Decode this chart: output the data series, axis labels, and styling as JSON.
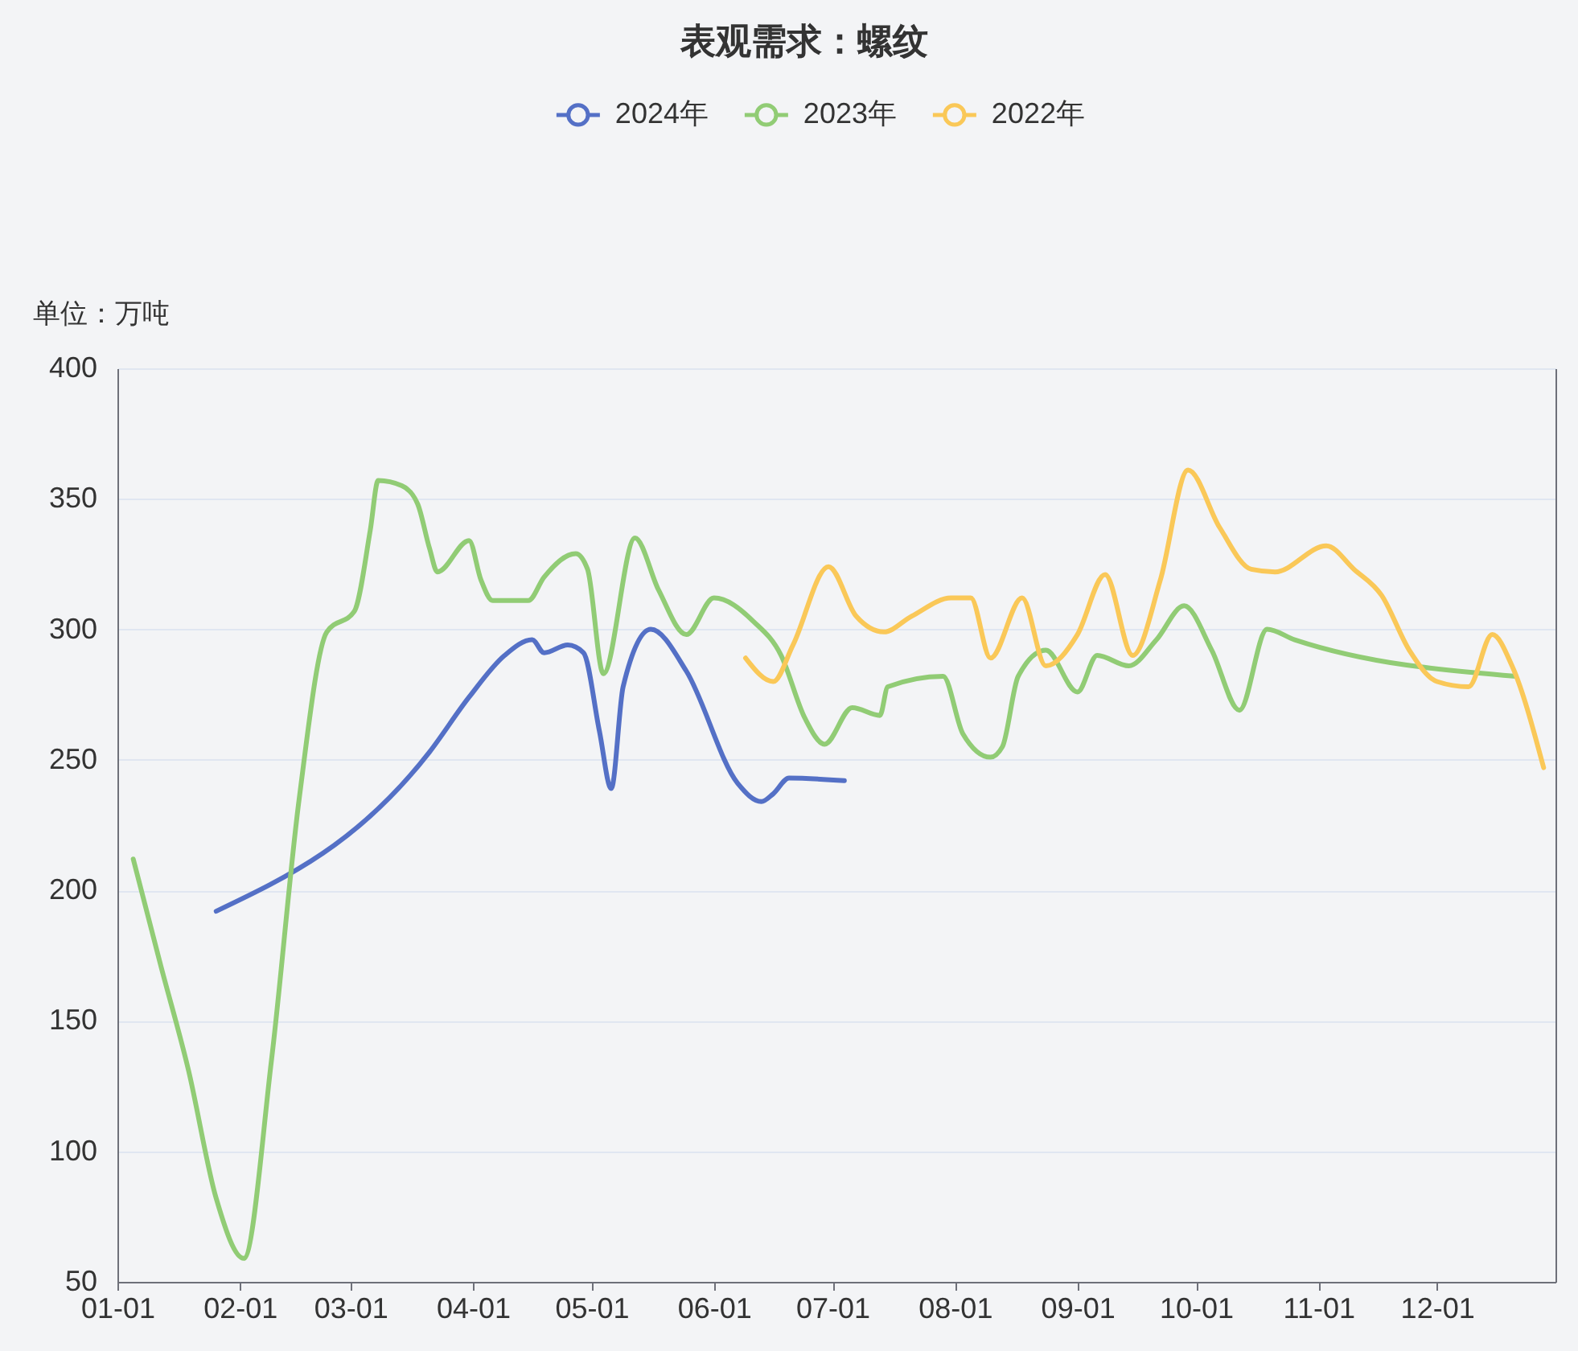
{
  "chart_data": {
    "type": "line",
    "title": "表观需求：螺纹",
    "ylabel": "单位：万吨",
    "xlim": [
      "--01-01",
      "--12-31"
    ],
    "xticks": [
      {
        "value": "--01-01",
        "label": "01-01"
      },
      {
        "value": "--02-01",
        "label": "02-01"
      },
      {
        "value": "--03-01",
        "label": "03-01"
      },
      {
        "value": "--04-01",
        "label": "04-01"
      },
      {
        "value": "--05-01",
        "label": "05-01"
      },
      {
        "value": "--06-01",
        "label": "06-01"
      },
      {
        "value": "--07-01",
        "label": "07-01"
      },
      {
        "value": "--08-01",
        "label": "08-01"
      },
      {
        "value": "--09-01",
        "label": "09-01"
      },
      {
        "value": "--10-01",
        "label": "10-01"
      },
      {
        "value": "--11-01",
        "label": "11-01"
      },
      {
        "value": "--12-01",
        "label": "12-01"
      }
    ],
    "ylim": [
      50,
      400
    ],
    "yticks": [
      50,
      100,
      150,
      200,
      250,
      300,
      350,
      400
    ],
    "grid": "y",
    "legend": "top",
    "series": [
      {
        "name": "2024年",
        "color": "#5470c6",
        "x": [
          "--01-26",
          "--03-21",
          "--03-31",
          "--04-09",
          "--04-16",
          "--04-19",
          "--04-25",
          "--04-29",
          "--05-03",
          "--05-06",
          "--05-09",
          "--05-16",
          "--05-25",
          "--06-07",
          "--06-13",
          "--06-16",
          "--06-20",
          "--07-04"
        ],
        "values": [
          192,
          253,
          274,
          290,
          296,
          291,
          294,
          291,
          261,
          239,
          278,
          300,
          284,
          241,
          234,
          237,
          243,
          242
        ]
      },
      {
        "name": "2023年",
        "color": "#91cc75",
        "x": [
          "--01-05",
          "--01-12",
          "--01-19",
          "--01-26",
          "--02-02",
          "--02-09",
          "--02-16",
          "--02-23",
          "--03-02",
          "--03-06",
          "--03-08",
          "--03-14",
          "--03-18",
          "--03-21",
          "--03-23",
          "--03-31",
          "--04-03",
          "--04-06",
          "--04-15",
          "--04-19",
          "--04-27",
          "--04-30",
          "--05-04",
          "--05-12",
          "--05-18",
          "--05-25",
          "--06-01",
          "--06-11",
          "--06-18",
          "--06-24",
          "--06-29",
          "--07-06",
          "--07-13",
          "--07-15",
          "--07-29",
          "--08-03",
          "--08-10",
          "--08-13",
          "--08-17",
          "--08-24",
          "--09-01",
          "--09-06",
          "--09-14",
          "--09-21",
          "--09-28",
          "--10-05",
          "--10-12",
          "--10-19",
          "--10-26",
          "--12-21"
        ],
        "values": [
          212,
          171,
          131,
          82,
          59,
          135,
          235,
          299,
          307,
          338,
          357,
          355,
          348,
          331,
          322,
          334,
          319,
          311,
          311,
          320,
          329,
          323,
          283,
          335,
          315,
          298,
          312,
          303,
          290,
          266,
          256,
          270,
          267,
          278,
          282,
          260,
          251,
          255,
          282,
          292,
          276,
          290,
          286,
          296,
          309,
          292,
          269,
          300,
          296,
          282
        ]
      },
      {
        "name": "2022年",
        "color": "#fac858",
        "x": [
          "--06-09",
          "--06-16",
          "--06-21",
          "--06-30",
          "--07-07",
          "--07-14",
          "--07-21",
          "--07-31",
          "--08-05",
          "--08-10",
          "--08-18",
          "--08-24",
          "--09-01",
          "--09-08",
          "--09-15",
          "--09-22",
          "--09-29",
          "--10-07",
          "--10-15",
          "--10-21",
          "--11-03",
          "--11-10",
          "--11-17",
          "--11-24",
          "--12-01",
          "--12-09",
          "--12-15",
          "--12-20",
          "--12-28"
        ],
        "values": [
          289,
          280,
          294,
          324,
          305,
          299,
          305,
          312,
          312,
          289,
          312,
          286,
          298,
          321,
          290,
          319,
          361,
          339,
          323,
          322,
          332,
          323,
          313,
          292,
          280,
          278,
          298,
          286,
          247
        ]
      }
    ]
  }
}
